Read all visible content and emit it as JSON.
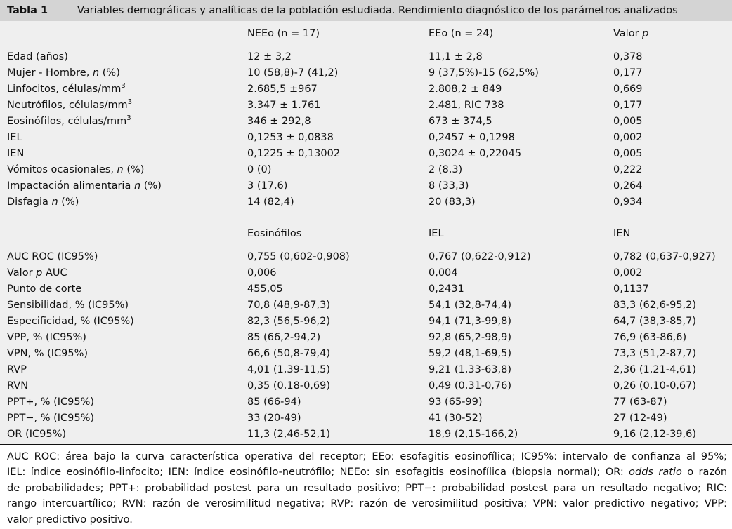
{
  "caption": {
    "label": "Tabla 1",
    "text": "Variables demográficas y analíticas de la población estudiada. Rendimiento diagnóstico de los parámetros analizados"
  },
  "section1": {
    "headers": [
      "",
      "NEEo (n = 17)",
      "EEo (n = 24)",
      "Valor p"
    ],
    "rows": [
      [
        "Edad (años)",
        "12 ± 3,2",
        "11,1 ± 2,8",
        "0,378"
      ],
      [
        "Mujer - Hombre, n (%)",
        "10 (58,8)-7 (41,2)",
        "9 (37,5%)-15 (62,5%)",
        "0,177"
      ],
      [
        "Linfocitos, células/mm3",
        "2.685,5 ±967",
        "2.808,2 ± 849",
        "0,669"
      ],
      [
        "Neutrófilos, células/mm3",
        "3.347 ± 1.761",
        "2.481, RIC 738",
        "0,177"
      ],
      [
        "Eosinófilos, células/mm3",
        "346 ± 292,8",
        "673 ± 374,5",
        "0,005"
      ],
      [
        "IEL",
        "0,1253 ± 0,0838",
        "0,2457 ± 0,1298",
        "0,002"
      ],
      [
        "IEN",
        "0,1225 ± 0,13002",
        "0,3024 ± 0,22045",
        "0,005"
      ],
      [
        "Vómitos ocasionales, n (%)",
        "0 (0)",
        "2 (8,3)",
        "0,222"
      ],
      [
        "Impactación alimentaria n (%)",
        "3 (17,6)",
        "8 (33,3)",
        "0,264"
      ],
      [
        "Disfagia n (%)",
        "14 (82,4)",
        "20 (83,3)",
        "0,934"
      ]
    ]
  },
  "section2": {
    "headers": [
      "",
      "Eosinófilos",
      "IEL",
      "IEN"
    ],
    "rows": [
      [
        "AUC ROC (IC95%)",
        "0,755 (0,602-0,908)",
        "0,767 (0,622-0,912)",
        "0,782 (0,637-0,927)"
      ],
      [
        "Valor p AUC",
        "0,006",
        "0,004",
        "0,002"
      ],
      [
        "Punto de corte",
        "455,05",
        "0,2431",
        "0,1137"
      ],
      [
        "Sensibilidad, % (IC95%)",
        "70,8 (48,9-87,3)",
        "54,1 (32,8-74,4)",
        "83,3 (62,6-95,2)"
      ],
      [
        "Especificidad, % (IC95%)",
        "82,3 (56,5-96,2)",
        "94,1 (71,3-99,8)",
        "64,7 (38,3-85,7)"
      ],
      [
        "VPP, % (IC95%)",
        "85 (66,2-94,2)",
        "92,8 (65,2-98,9)",
        "76,9 (63-86,6)"
      ],
      [
        "VPN, % (IC95%)",
        "66,6 (50,8-79,4)",
        "59,2 (48,1-69,5)",
        "73,3 (51,2-87,7)"
      ],
      [
        "RVP",
        "4,01 (1,39-11,5)",
        "9,21 (1,33-63,8)",
        "2,36 (1,21-4,61)"
      ],
      [
        "RVN",
        "0,35 (0,18-0,69)",
        "0,49 (0,31-0,76)",
        "0,26 (0,10-0,67)"
      ],
      [
        "PPT+, % (IC95%)",
        "85 (66-94)",
        "93 (65-99)",
        "77 (63-87)"
      ],
      [
        "PPT−, % (IC95%)",
        "33 (20-49)",
        "41 (30-52)",
        "27 (12-49)"
      ],
      [
        "OR (IC95%)",
        "11,3 (2,46-52,1)",
        "18,9 (2,15-166,2)",
        "9,16 (2,12-39,6)"
      ]
    ]
  },
  "footnote": {
    "lines": [
      "AUC ROC: área bajo la curva característica operativa del receptor; EEo: esofagitis eosinofílica; IC95%: intervalo de confianza al 95%;",
      "IEL: índice eosinófilo-linfocito; IEN: índice eosinófilo-neutrófilo; NEEo: sin esofagitis eosinofílica (biopsia normal); OR: odds ratio o razón",
      "de probabilidades; PPT+: probabilidad postest para un resultado positivo; PPT−: probabilidad postest para un resultado negativo; RIC:",
      "rango intercuartílico; RVN: razón de verosimilitud negativa; RVP: razón de verosimilitud positiva; VPN: valor predictivo negativo; VPP:",
      "valor predictivo positivo."
    ]
  }
}
